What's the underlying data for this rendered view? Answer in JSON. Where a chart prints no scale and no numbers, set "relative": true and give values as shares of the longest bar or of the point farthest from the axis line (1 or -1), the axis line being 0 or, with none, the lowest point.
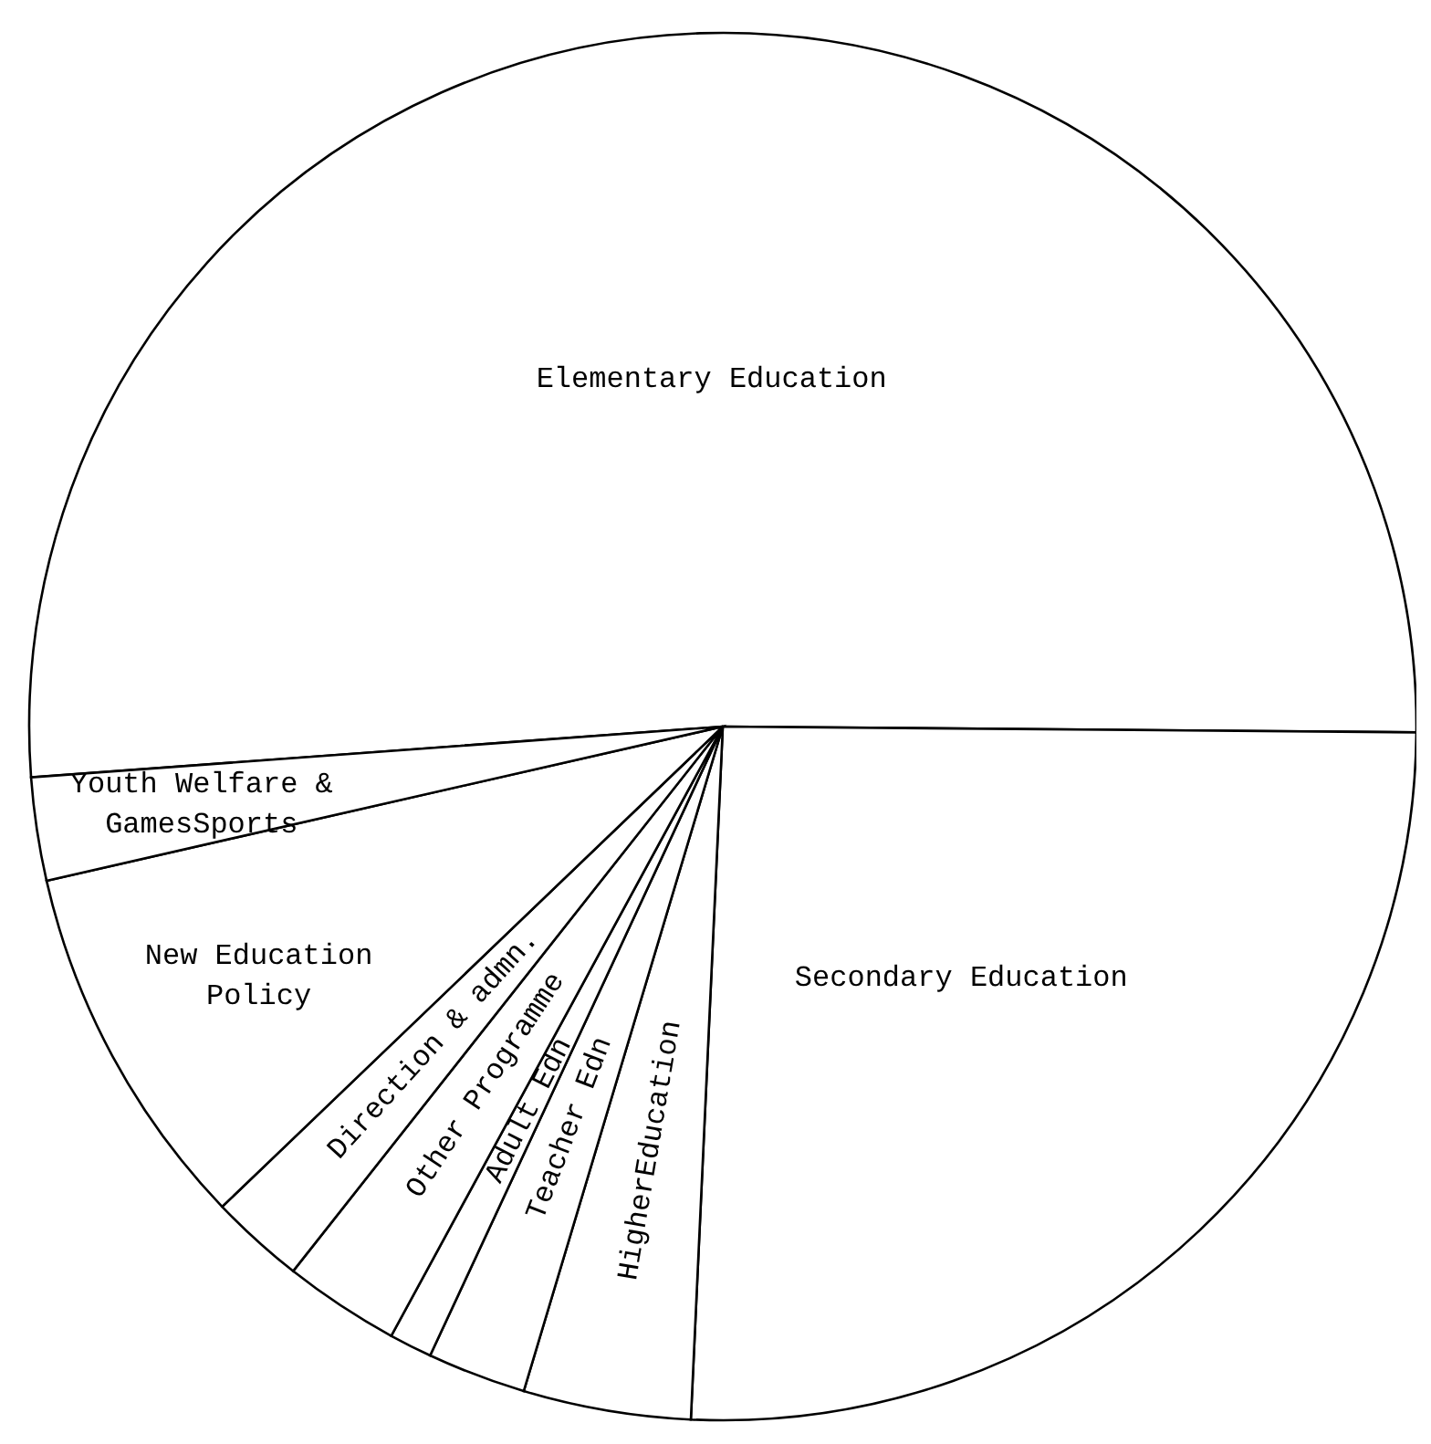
{
  "chart_data": {
    "type": "pie",
    "relative": true,
    "categories": [
      "Elementary  Education",
      "Secondary Education",
      "HigherEducation",
      "Teacher Edn",
      "Adult Edn",
      "Other Programme",
      "Direction & admn.",
      "New Education Policy",
      "Youth Welfare & GamesSports"
    ],
    "values": [
      51.3,
      25.6,
      3.9,
      2.3,
      1.0,
      2.7,
      2.2,
      8.6,
      2.4
    ],
    "colors": [
      "#ffffff",
      "#ffffff",
      "#ffffff",
      "#ffffff",
      "#ffffff",
      "#ffffff",
      "#ffffff",
      "#ffffff",
      "#ffffff"
    ]
  }
}
